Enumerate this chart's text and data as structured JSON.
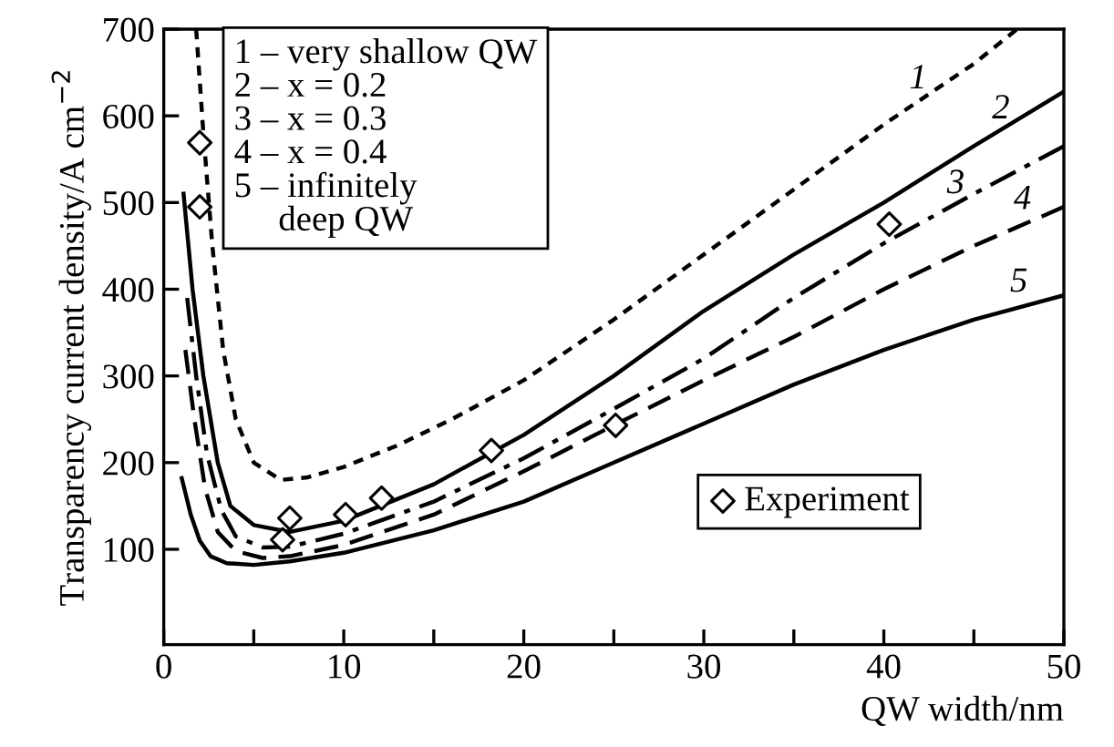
{
  "chart_data": {
    "type": "line",
    "xlabel": "QW width/nm",
    "ylabel": "Transparency current density/A cm$^{−2}$",
    "xlim": [
      0,
      50
    ],
    "ylim": [
      -10,
      700
    ],
    "xticks": [
      0,
      {
        "value": 5,
        "label": null
      },
      10,
      {
        "value": 15,
        "label": null
      },
      20,
      {
        "value": 25,
        "label": null
      },
      30,
      {
        "value": 35,
        "label": null
      },
      40,
      {
        "value": 45,
        "label": null
      },
      50
    ],
    "yticks": [
      100,
      200,
      300,
      400,
      500,
      600,
      700
    ],
    "grid": false,
    "legend": "bottom right",
    "series": [
      {
        "name": "1",
        "color": "#000000",
        "line_style": "dotted",
        "x": [
          1.8,
          2.2,
          2.7,
          3.3,
          4,
          5,
          6.5,
          8,
          10,
          13,
          16,
          20,
          25,
          30,
          35,
          40,
          45,
          47.4
        ],
        "values": [
          700,
          580,
          450,
          330,
          250,
          200,
          180,
          183,
          195,
          220,
          250,
          295,
          365,
          440,
          515,
          590,
          660,
          700
        ]
      },
      {
        "name": "2",
        "color": "#000000",
        "line_style": "solid",
        "x": [
          1.1,
          1.6,
          2.2,
          3,
          3.7,
          5,
          7,
          10,
          15,
          20,
          25,
          30,
          35,
          40,
          45,
          50
        ],
        "values": [
          510,
          400,
          300,
          200,
          150,
          128,
          120,
          133,
          175,
          232,
          300,
          375,
          440,
          500,
          565,
          628
        ]
      },
      {
        "name": "3",
        "color": "#000000",
        "line_style": "dashdot",
        "x": [
          1.3,
          1.8,
          2.4,
          3.2,
          4,
          5.5,
          7,
          10,
          15,
          20,
          25,
          30,
          35,
          40,
          45,
          50
        ],
        "values": [
          390,
          300,
          210,
          145,
          115,
          102,
          103,
          118,
          155,
          205,
          262,
          320,
          390,
          453,
          510,
          565
        ]
      },
      {
        "name": "4",
        "color": "#000000",
        "line_style": "dashed",
        "x": [
          1.2,
          1.7,
          2.3,
          3,
          4,
          5.5,
          7,
          10,
          15,
          20,
          25,
          30,
          35,
          40,
          45,
          50
        ],
        "values": [
          330,
          250,
          170,
          120,
          98,
          90,
          92,
          105,
          140,
          190,
          243,
          295,
          345,
          400,
          450,
          495
        ]
      },
      {
        "name": "5",
        "color": "#000000",
        "line_style": "solid",
        "x": [
          1.0,
          1.5,
          2,
          2.6,
          3.5,
          5,
          7,
          10,
          15,
          20,
          25,
          30,
          35,
          40,
          45,
          50
        ],
        "values": [
          182,
          140,
          110,
          92,
          84,
          82,
          86,
          96,
          122,
          155,
          200,
          245,
          290,
          330,
          365,
          393
        ]
      },
      {
        "type": "scatter",
        "name": "Experiment",
        "color": "#000000",
        "marker": "diamond",
        "x": [
          2.0,
          2.0,
          7.0,
          6.6,
          10.1,
          12.1,
          18.2,
          25.1,
          40.3
        ],
        "values": [
          569,
          495,
          136,
          111,
          140,
          159,
          214,
          243,
          475
        ]
      }
    ],
    "annotations": [
      "1 – very shallow QW\n2 – x = 0.2\n3 – x = 0.3\n4 – x = 0.4\n5 – infinitely\n     deep QW"
    ]
  }
}
